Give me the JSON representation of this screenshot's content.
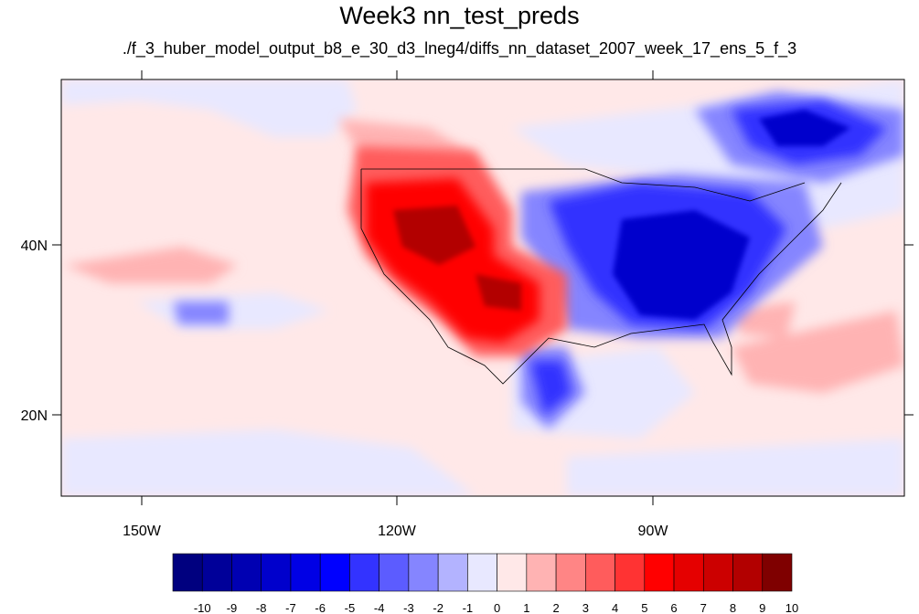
{
  "title": "Week3 nn_test_preds",
  "subtitle": "./f_3_huber_model_output_b8_e_30_d3_lneg4/diffs_nn_dataset_2007_week_17_ens_5_f_3",
  "axes": {
    "lat_labels": [
      "40N",
      "20N"
    ],
    "lon_labels": [
      "150W",
      "120W",
      "90W"
    ]
  },
  "colorbar": {
    "labels": [
      "-10",
      "-9",
      "-8",
      "-7",
      "-6",
      "-5",
      "-4",
      "-3",
      "-2",
      "-1",
      "0",
      "1",
      "2",
      "3",
      "4",
      "5",
      "6",
      "7",
      "8",
      "9",
      "10"
    ],
    "colors": [
      "#00007f",
      "#000099",
      "#0000b2",
      "#0000cc",
      "#0000e5",
      "#0000ff",
      "#3333ff",
      "#5c5cff",
      "#8585ff",
      "#b3b3ff",
      "#e8e8ff",
      "#ffe8e8",
      "#ffb3b3",
      "#ff8585",
      "#ff5c5c",
      "#ff3333",
      "#ff0000",
      "#e50000",
      "#cc0000",
      "#b20000",
      "#7f0000"
    ]
  }
}
